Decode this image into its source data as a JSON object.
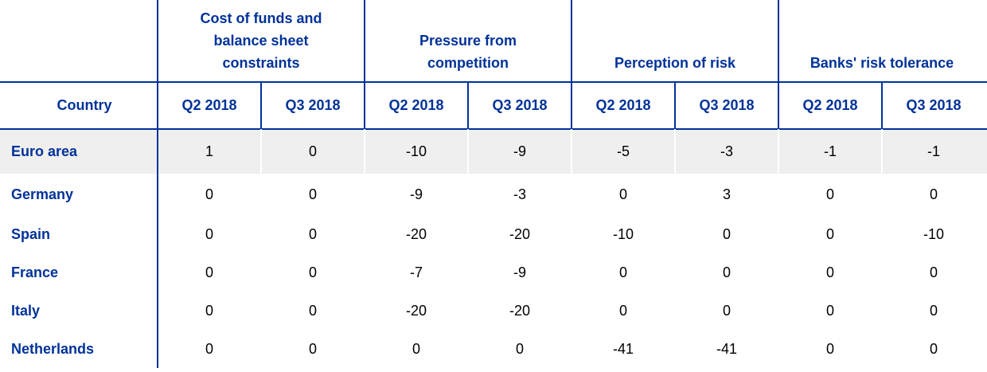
{
  "table": {
    "corner": "Country",
    "groups": [
      "Cost of funds and balance sheet constraints",
      "Pressure from competition",
      "Perception of risk",
      "Banks' risk tolerance"
    ],
    "subheaders": [
      "Q2 2018",
      "Q3 2018",
      "Q2 2018",
      "Q3 2018",
      "Q2 2018",
      "Q3 2018",
      "Q2 2018",
      "Q3 2018"
    ],
    "rows": [
      {
        "country": "Euro area",
        "values": [
          1,
          0,
          -10,
          -9,
          -5,
          -3,
          -1,
          -1
        ]
      },
      {
        "country": "Germany",
        "values": [
          0,
          0,
          -9,
          -3,
          0,
          3,
          0,
          0
        ]
      },
      {
        "country": "Spain",
        "values": [
          0,
          0,
          -20,
          -20,
          -10,
          0,
          0,
          -10
        ]
      },
      {
        "country": "France",
        "values": [
          0,
          0,
          -7,
          -9,
          0,
          0,
          0,
          0
        ]
      },
      {
        "country": "Italy",
        "values": [
          0,
          0,
          -20,
          -20,
          0,
          0,
          0,
          0
        ]
      },
      {
        "country": "Netherlands",
        "values": [
          0,
          0,
          0,
          0,
          -41,
          -41,
          0,
          0
        ]
      }
    ]
  }
}
